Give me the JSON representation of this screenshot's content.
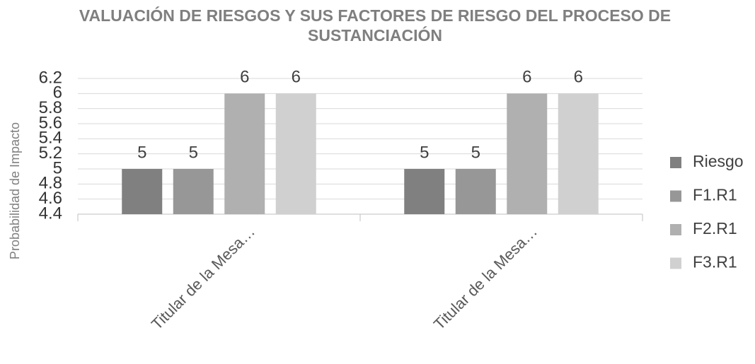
{
  "chart_data": {
    "type": "bar",
    "title": "VALUACIÓN DE RIESGOS Y SUS FACTORES DE RIESGO DEL PROCESO DE SUSTANCIACIÓN",
    "y_label": "Probabilidad de Impacto",
    "categories": [
      "Titular de la Mesa…",
      "Titular de la Mesa…"
    ],
    "series": [
      {
        "name": "Riesgo",
        "color": "#808080",
        "values": [
          5,
          5
        ]
      },
      {
        "name": "F1.R1",
        "color": "#979797",
        "values": [
          5,
          5
        ]
      },
      {
        "name": "F2.R1",
        "color": "#b0b0b0",
        "values": [
          6,
          6
        ]
      },
      {
        "name": "F3.R1",
        "color": "#d0d0d0",
        "values": [
          6,
          6
        ]
      }
    ],
    "ylim": [
      4.4,
      6.2
    ],
    "yticks": [
      4.4,
      4.6,
      4.8,
      5,
      5.2,
      5.4,
      5.6,
      5.8,
      6,
      6.2
    ],
    "grid": true,
    "legend": "right"
  }
}
